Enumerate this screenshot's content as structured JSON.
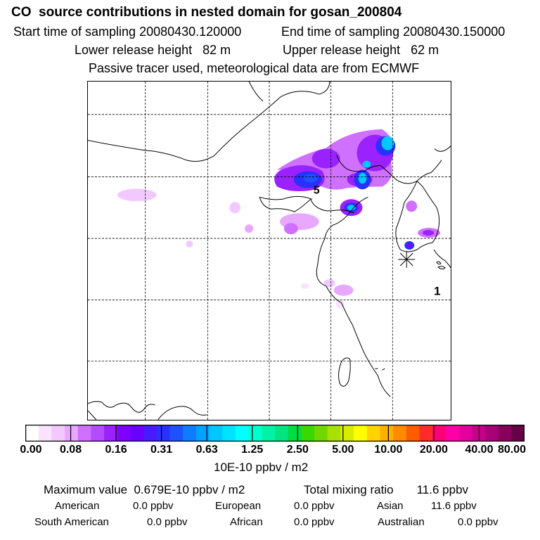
{
  "header": {
    "title": "CO  source contributions in nested domain for gosan_200804",
    "start_label": "Start time of sampling 20080430.120000",
    "end_label": "End time of sampling 20080430.150000",
    "lower_height": "Lower release height   82 m",
    "upper_height": "Upper release height   62 m",
    "tracer_note": "Passive tracer used, meteorological data are from ECMWF"
  },
  "map": {
    "marker_1": "1",
    "marker_5": "5",
    "receptor_symbol": "receptor-star"
  },
  "colorbar": {
    "ticks": [
      "0.00",
      "0.08",
      "0.16",
      "0.31",
      "0.63",
      "1.25",
      "2.50",
      "5.00",
      "10.00",
      "20.00",
      "40.00",
      "80.00"
    ],
    "colors": [
      "#ffffff",
      "#f9e3ff",
      "#f2c9ff",
      "#e9a8ff",
      "#cf70ff",
      "#b54bff",
      "#9a22ff",
      "#7f00ff",
      "#6a00ff",
      "#4a1aff",
      "#2a30ff",
      "#1f52ff",
      "#0f7cff",
      "#00a2ff",
      "#00c7ff",
      "#00e3ff",
      "#00ffff",
      "#00ffd0",
      "#00f2a6",
      "#00e67f",
      "#00dd44",
      "#3ad800",
      "#70d800",
      "#a8e000",
      "#d7ec00",
      "#ffff00",
      "#ffd400",
      "#ffb000",
      "#ff8a00",
      "#ff5c00",
      "#ff2a2a",
      "#ff0077",
      "#ff00a8",
      "#e4009c",
      "#c6008a",
      "#a80078",
      "#87005c",
      "#680049"
    ],
    "units": "10E-10 ppbv / m2"
  },
  "stats": {
    "max_value": "Maximum value  0.679E-10 ppbv / m2",
    "total_mixing": "Total mixing ratio       11.6 ppbv",
    "american_label": "American",
    "american_value": "0.0 ppbv",
    "european_label": "European",
    "european_value": "0.0 ppbv",
    "asian_label": "Asian",
    "asian_value": "11.6 ppbv",
    "south_american_label": "South American",
    "south_american_value": "0.0 ppbv",
    "african_label": "African",
    "african_value": "0.0 ppbv",
    "australian_label": "Australian",
    "australian_value": "0.0 ppbv"
  }
}
